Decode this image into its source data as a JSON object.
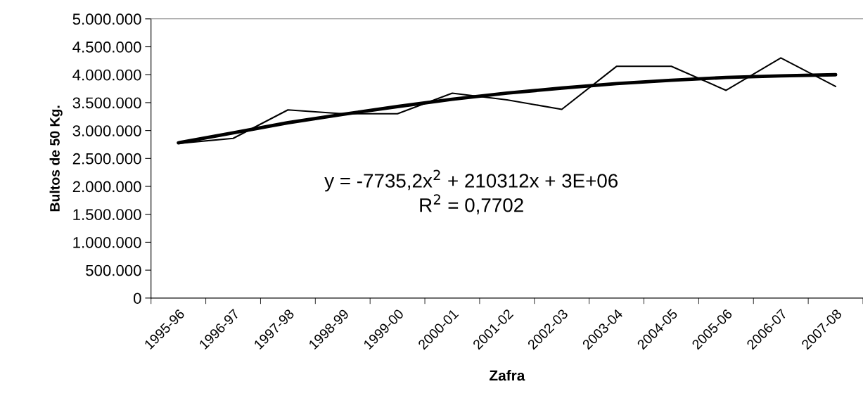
{
  "chart_data": {
    "type": "line",
    "xlabel": "Zafra",
    "ylabel": "Bultos de 50 Kg.",
    "categories": [
      "1995-96",
      "1996-97",
      "1997-98",
      "1998-99",
      "1999-00",
      "2000-01",
      "2001-02",
      "2002-03",
      "2003-04",
      "2004-05",
      "2005-06",
      "2006-07",
      "2007-08"
    ],
    "series": [
      {
        "color": "#000000",
        "values": [
          2770000,
          2860000,
          3370000,
          3300000,
          3300000,
          3670000,
          3550000,
          3380000,
          4150000,
          4150000,
          3720000,
          4300000,
          3790000
        ]
      },
      {
        "type": "line",
        "color": "#000000",
        "values": [
          2780000,
          2960000,
          3140000,
          3290000,
          3430000,
          3560000,
          3670000,
          3760000,
          3840000,
          3900000,
          3950000,
          3980000,
          4000000
        ]
      }
    ],
    "ylim": [
      0,
      5000000
    ],
    "yticks": [
      {
        "value": 0,
        "label": "0"
      },
      {
        "value": 500000,
        "label": "500.000"
      },
      {
        "value": 1000000,
        "label": "1.000.000"
      },
      {
        "value": 1500000,
        "label": "1.500.000"
      },
      {
        "value": 2000000,
        "label": "2.000.000"
      },
      {
        "value": 2500000,
        "label": "2.500.000"
      },
      {
        "value": 3000000,
        "label": "3.000.000"
      },
      {
        "value": 3500000,
        "label": "3.500.000"
      },
      {
        "value": 4000000,
        "label": "4.000.000"
      },
      {
        "value": 4500000,
        "label": "4.500.000"
      },
      {
        "value": 5000000,
        "label": "5.000.000"
      }
    ],
    "annotations": [
      "y = -7735,2x$^{2}$ + 210312x + 3E+06",
      "R$^{2}$ = 0,7702"
    ],
    "grid": false,
    "legend": false,
    "marker": "none",
    "line_style": "solid"
  }
}
